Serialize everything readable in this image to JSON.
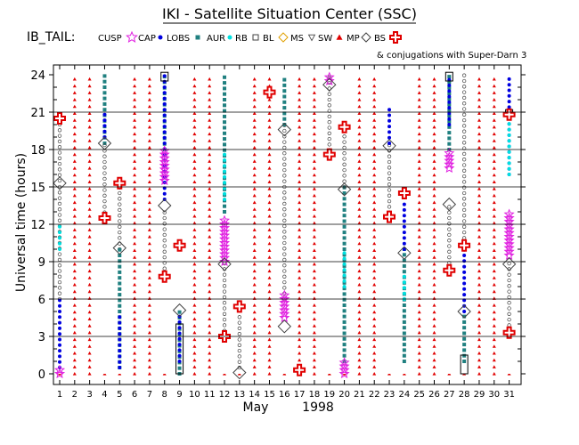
{
  "chart_data": {
    "type": "scatter",
    "title": "IKI - Satellite Situation Center (SSC)",
    "tail_label": "IB_TAIL:",
    "legend": [
      {
        "name": "CUSP",
        "symbol": "star",
        "color": "#e020e0"
      },
      {
        "name": "CAP",
        "symbol": "dot",
        "color": "#0000e0"
      },
      {
        "name": "LOBS",
        "symbol": "square",
        "color": "#208080"
      },
      {
        "name": "AUR",
        "symbol": "triangle-down-dot",
        "color": "#00e0e0"
      },
      {
        "name": "RB",
        "symbol": "open-square",
        "color": "#404040"
      },
      {
        "name": "BL",
        "symbol": "diamond",
        "color": "#e0a000"
      },
      {
        "name": "MS",
        "symbol": "triangle-down",
        "color": "#404040"
      },
      {
        "name": "SW",
        "symbol": "triangle",
        "color": "#e00000"
      },
      {
        "name": "MP",
        "symbol": "diamond-open",
        "color": "#404040"
      },
      {
        "name": "BS",
        "symbol": "cross-open",
        "color": "#e00000"
      }
    ],
    "conjugation_note": "& conjugations with Super-Darn 3",
    "ylabel": "Universal time (hours)",
    "xlabel_month": "May",
    "xlabel_year": "1998",
    "ylim": [
      0,
      24
    ],
    "yticks": [
      0,
      3,
      6,
      9,
      12,
      15,
      18,
      21,
      24
    ],
    "xlim": [
      1,
      31
    ],
    "days": [
      1,
      2,
      3,
      4,
      5,
      6,
      7,
      8,
      9,
      10,
      11,
      12,
      13,
      14,
      15,
      16,
      17,
      18,
      19,
      20,
      21,
      22,
      23,
      24,
      25,
      26,
      27,
      28,
      29,
      30,
      31
    ],
    "grid": true,
    "sw_days": [
      1,
      2,
      3,
      4,
      5,
      6,
      7,
      8,
      9,
      10,
      11,
      12,
      13,
      14,
      15,
      16,
      17,
      18,
      19,
      20,
      21,
      22,
      23,
      24,
      25,
      26,
      27,
      28,
      29,
      30,
      31
    ],
    "tracks": [
      {
        "day": 1,
        "segments": [
          {
            "type": "MS",
            "start": 6,
            "end": 15
          },
          {
            "type": "AUR",
            "start": 10,
            "end": 12
          },
          {
            "type": "CAP",
            "start": 0.5,
            "end": 6
          },
          {
            "type": "MS",
            "start": 15.5,
            "end": 20
          }
        ]
      },
      {
        "day": 4,
        "segments": [
          {
            "type": "LOBS",
            "start": 18.5,
            "end": 24
          },
          {
            "type": "CAP",
            "start": 19,
            "end": 21
          },
          {
            "type": "MS",
            "start": 12.5,
            "end": 18.5
          }
        ]
      },
      {
        "day": 5,
        "segments": [
          {
            "type": "MS",
            "start": 10,
            "end": 15
          },
          {
            "type": "LOBS",
            "start": 0.5,
            "end": 10
          },
          {
            "type": "CAP",
            "start": 0.5,
            "end": 5
          }
        ]
      },
      {
        "day": 8,
        "segments": [
          {
            "type": "LOBS",
            "start": 18,
            "end": 24
          },
          {
            "type": "CAP",
            "start": 14,
            "end": 24
          },
          {
            "type": "MS",
            "start": 8,
            "end": 13
          }
        ]
      },
      {
        "day": 9,
        "segments": [
          {
            "type": "LOBS",
            "start": 0,
            "end": 5
          },
          {
            "type": "CAP",
            "start": 1,
            "end": 5
          }
        ]
      },
      {
        "day": 12,
        "segments": [
          {
            "type": "LOBS",
            "start": 13,
            "end": 24
          },
          {
            "type": "AUR",
            "start": 14,
            "end": 18
          },
          {
            "type": "MS",
            "start": 3,
            "end": 9
          }
        ]
      },
      {
        "day": 13,
        "segments": [
          {
            "type": "MS",
            "start": 0.5,
            "end": 5
          }
        ]
      },
      {
        "day": 16,
        "segments": [
          {
            "type": "MS",
            "start": 6,
            "end": 20
          },
          {
            "type": "LOBS",
            "start": 20,
            "end": 24
          }
        ]
      },
      {
        "day": 19,
        "segments": [
          {
            "type": "MS",
            "start": 17.5,
            "end": 24
          }
        ]
      },
      {
        "day": 20,
        "segments": [
          {
            "type": "LOBS",
            "start": 1,
            "end": 15
          },
          {
            "type": "AUR",
            "start": 7,
            "end": 10
          },
          {
            "type": "MS",
            "start": 15,
            "end": 20
          }
        ]
      },
      {
        "day": 23,
        "segments": [
          {
            "type": "MS",
            "start": 12.5,
            "end": 18.5
          },
          {
            "type": "CAP",
            "start": 18.5,
            "end": 21.5
          }
        ]
      },
      {
        "day": 24,
        "segments": [
          {
            "type": "LOBS",
            "start": 1,
            "end": 10
          },
          {
            "type": "AUR",
            "start": 6,
            "end": 8
          },
          {
            "type": "CAP",
            "start": 10,
            "end": 14
          }
        ]
      },
      {
        "day": 27,
        "segments": [
          {
            "type": "LOBS",
            "start": 18,
            "end": 24
          },
          {
            "type": "CAP",
            "start": 20,
            "end": 24
          },
          {
            "type": "MS",
            "start": 8,
            "end": 13.5
          }
        ]
      },
      {
        "day": 28,
        "segments": [
          {
            "type": "LOBS",
            "start": 1,
            "end": 5
          },
          {
            "type": "CAP",
            "start": 5,
            "end": 10
          },
          {
            "type": "MS",
            "start": 10,
            "end": 24
          }
        ]
      },
      {
        "day": 31,
        "segments": [
          {
            "type": "CAP",
            "start": 16,
            "end": 24
          },
          {
            "type": "AUR",
            "start": 16,
            "end": 21
          },
          {
            "type": "MS",
            "start": 3,
            "end": 9
          }
        ]
      }
    ],
    "cusp_clusters": [
      {
        "day": 1,
        "start": 0,
        "end": 0.5
      },
      {
        "day": 8,
        "start": 15.5,
        "end": 18
      },
      {
        "day": 12,
        "start": 9,
        "end": 12.5
      },
      {
        "day": 16,
        "start": 4.5,
        "end": 6.5
      },
      {
        "day": 19,
        "start": 23.5,
        "end": 24
      },
      {
        "day": 20,
        "start": 0,
        "end": 1
      },
      {
        "day": 27,
        "start": 16.5,
        "end": 18
      },
      {
        "day": 31,
        "start": 9.5,
        "end": 13
      }
    ],
    "mp_points": [
      {
        "day": 1,
        "value": 15.3
      },
      {
        "day": 4,
        "value": 18.5
      },
      {
        "day": 5,
        "value": 10.1
      },
      {
        "day": 8,
        "value": 13.5
      },
      {
        "day": 9,
        "value": 5.1
      },
      {
        "day": 12,
        "value": 8.8
      },
      {
        "day": 13,
        "value": 0.1
      },
      {
        "day": 16,
        "value": 3.8
      },
      {
        "day": 16,
        "value": 19.6
      },
      {
        "day": 19,
        "value": 23.2
      },
      {
        "day": 20,
        "value": 14.8
      },
      {
        "day": 23,
        "value": 18.3
      },
      {
        "day": 24,
        "value": 9.7
      },
      {
        "day": 27,
        "value": 13.6
      },
      {
        "day": 28,
        "value": 5.0
      },
      {
        "day": 31,
        "value": 8.8
      }
    ],
    "bs_points": [
      {
        "day": 1,
        "value": 20.5
      },
      {
        "day": 4,
        "value": 12.5
      },
      {
        "day": 5,
        "value": 15.3
      },
      {
        "day": 8,
        "value": 7.8
      },
      {
        "day": 9,
        "value": 10.3
      },
      {
        "day": 12,
        "value": 3.0
      },
      {
        "day": 13,
        "value": 5.4
      },
      {
        "day": 15,
        "value": 22.6
      },
      {
        "day": 17,
        "value": 0.3
      },
      {
        "day": 19,
        "value": 17.6
      },
      {
        "day": 20,
        "value": 19.8
      },
      {
        "day": 23,
        "value": 12.6
      },
      {
        "day": 24,
        "value": 14.5
      },
      {
        "day": 27,
        "value": 8.3
      },
      {
        "day": 28,
        "value": 10.3
      },
      {
        "day": 31,
        "value": 3.3
      },
      {
        "day": 31,
        "value": 20.8
      }
    ],
    "conjugation_boxes": [
      {
        "day": 8,
        "start": 23.5,
        "end": 24.2
      },
      {
        "day": 27,
        "start": 23.5,
        "end": 24.2
      },
      {
        "day": 31,
        "start": 20.8,
        "end": 21.2
      },
      {
        "day": 9,
        "start": 0,
        "end": 4
      },
      {
        "day": 28,
        "start": 0,
        "end": 1.5
      }
    ]
  }
}
